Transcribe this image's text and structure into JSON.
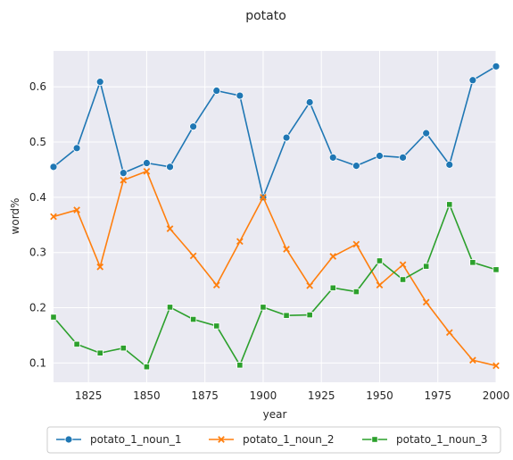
{
  "chart_data": {
    "type": "line",
    "title": "potato",
    "xlabel": "year",
    "ylabel": "word%",
    "xlim": [
      1810,
      2000
    ],
    "ylim": [
      0.065,
      0.665
    ],
    "grid": true,
    "legend_placement": "bottom",
    "x": [
      1810,
      1820,
      1830,
      1840,
      1850,
      1860,
      1870,
      1880,
      1890,
      1900,
      1910,
      1920,
      1930,
      1940,
      1950,
      1960,
      1970,
      1980,
      1990,
      2000
    ],
    "x_ticks": [
      1825,
      1850,
      1875,
      1900,
      1925,
      1950,
      1975,
      2000
    ],
    "y_ticks": [
      0.1,
      0.2,
      0.3,
      0.4,
      0.5,
      0.6
    ],
    "series": [
      {
        "name": "potato_1_noun_1",
        "color": "#1f77b4",
        "marker": "circle",
        "values": [
          0.455,
          0.489,
          0.609,
          0.444,
          0.462,
          0.455,
          0.528,
          0.593,
          0.584,
          0.4,
          0.508,
          0.572,
          0.472,
          0.457,
          0.475,
          0.472,
          0.516,
          0.459,
          0.612,
          0.637
        ]
      },
      {
        "name": "potato_1_noun_2",
        "color": "#ff7f0e",
        "marker": "x",
        "values": [
          0.365,
          0.377,
          0.274,
          0.431,
          0.447,
          0.343,
          0.294,
          0.241,
          0.32,
          0.4,
          0.306,
          0.24,
          0.293,
          0.315,
          0.241,
          0.278,
          0.21,
          0.155,
          0.105,
          0.095
        ]
      },
      {
        "name": "potato_1_noun_3",
        "color": "#2ca02c",
        "marker": "square",
        "values": [
          0.183,
          0.134,
          0.118,
          0.127,
          0.093,
          0.201,
          0.179,
          0.167,
          0.096,
          0.201,
          0.186,
          0.187,
          0.236,
          0.229,
          0.285,
          0.251,
          0.275,
          0.387,
          0.282,
          0.269
        ]
      }
    ]
  }
}
